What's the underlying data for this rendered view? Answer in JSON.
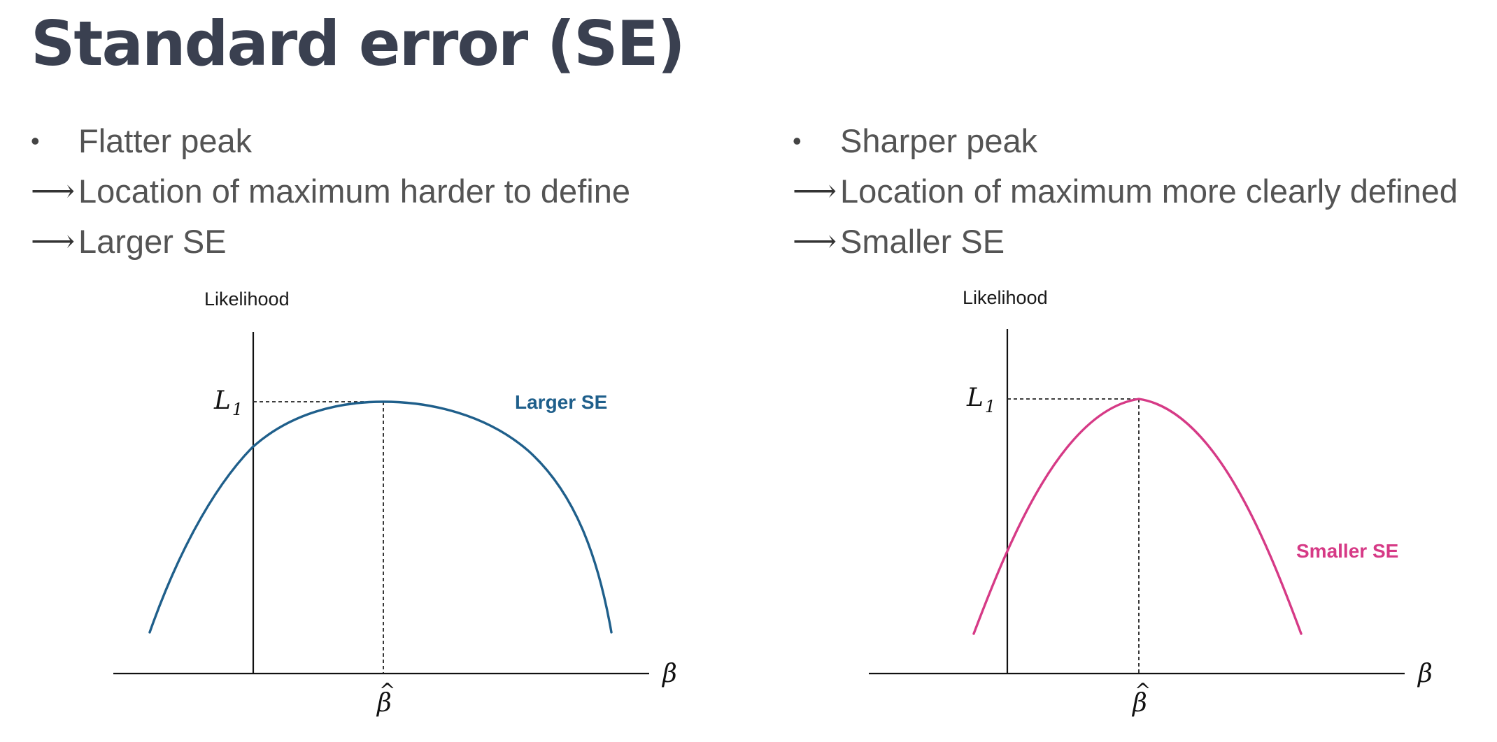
{
  "slide": {
    "title": "Standard error (SE)"
  },
  "left": {
    "bullet_marker": "•",
    "arrow_marker": "⟶",
    "bullet": "Flatter peak",
    "line2": "Location of maximum harder to define",
    "line3": "Larger SE",
    "plot": {
      "ylabel": "Likelihood",
      "peak_label": "L",
      "peak_sub": "1",
      "x_axis_label": "β",
      "x_marker": "β",
      "x_marker_hat": "^",
      "curve_label": "Larger SE",
      "curve_color": "#1f5f8b"
    }
  },
  "right": {
    "bullet_marker": "•",
    "arrow_marker": "⟶",
    "bullet": "Sharper peak",
    "line2": "Location of maximum more clearly defined",
    "line3": "Smaller SE",
    "plot": {
      "ylabel": "Likelihood",
      "peak_label": "L",
      "peak_sub": "1",
      "x_axis_label": "β",
      "x_marker": "β",
      "x_marker_hat": "^",
      "curve_label": "Smaller SE",
      "curve_color": "#d63a86"
    }
  }
}
